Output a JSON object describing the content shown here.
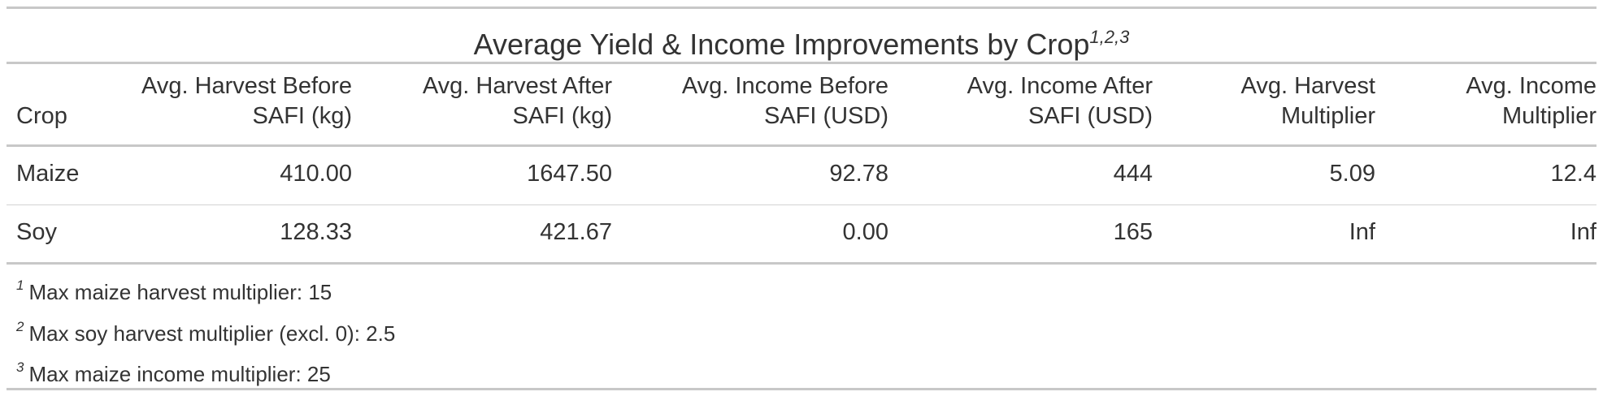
{
  "chart_data": {
    "type": "table",
    "title": "Average Yield & Income Improvements by Crop",
    "title_footnote_marks": "1,2,3",
    "columns": [
      {
        "label_line1": "",
        "label_line2": "Crop",
        "align": "left"
      },
      {
        "label_line1": "Avg. Harvest Before",
        "label_line2": "SAFI (kg)",
        "align": "right"
      },
      {
        "label_line1": "Avg. Harvest After",
        "label_line2": "SAFI (kg)",
        "align": "right"
      },
      {
        "label_line1": "Avg. Income Before",
        "label_line2": "SAFI (USD)",
        "align": "right"
      },
      {
        "label_line1": "Avg. Income After",
        "label_line2": "SAFI (USD)",
        "align": "right"
      },
      {
        "label_line1": "Avg. Harvest",
        "label_line2": "Multiplier",
        "align": "right"
      },
      {
        "label_line1": "Avg. Income",
        "label_line2": "Multiplier",
        "align": "right"
      }
    ],
    "rows": [
      [
        "Maize",
        "410.00",
        "1647.50",
        "92.78",
        "444",
        "5.09",
        "12.4"
      ],
      [
        "Soy",
        "128.33",
        "421.67",
        "0.00",
        "165",
        "Inf",
        "Inf"
      ]
    ],
    "footnotes": [
      {
        "mark": "1",
        "text": "Max maize harvest multiplier: 15"
      },
      {
        "mark": "2",
        "text": "Max soy harvest multiplier (excl. 0): 2.5"
      },
      {
        "mark": "3",
        "text": "Max maize income multiplier: 25"
      }
    ]
  }
}
